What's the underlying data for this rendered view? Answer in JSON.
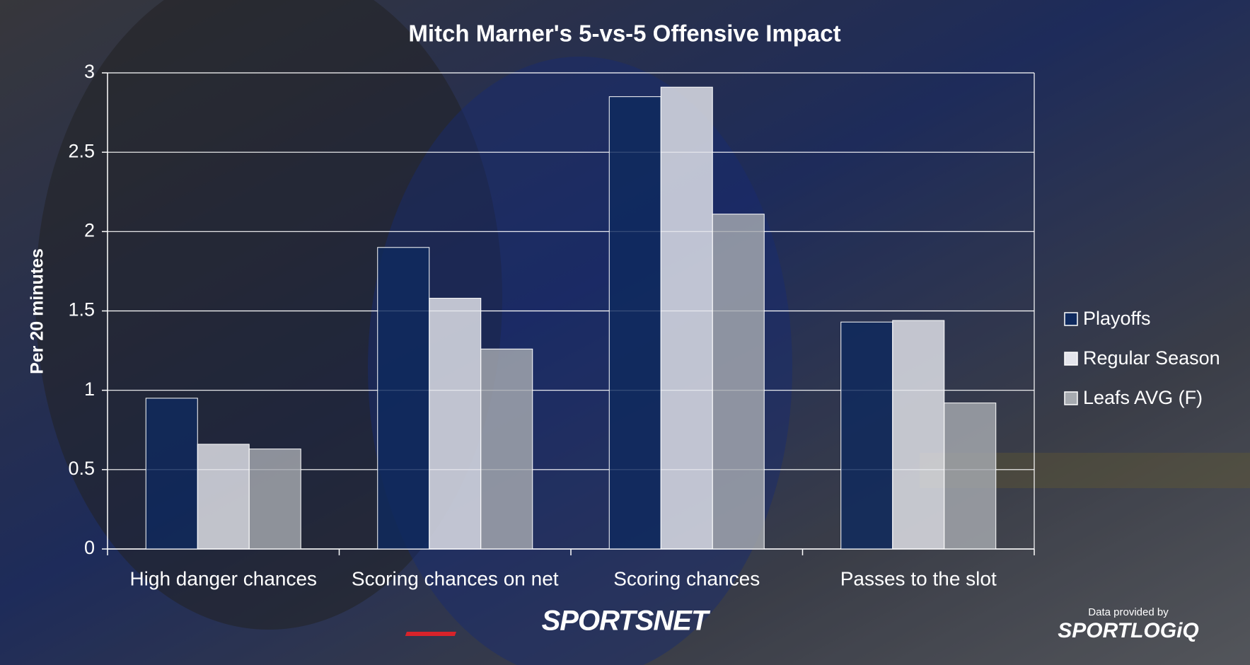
{
  "chart_data": {
    "type": "bar",
    "title": "Mitch Marner's 5-vs-5 Offensive Impact",
    "y_label": "Per 20 minutes",
    "categories": [
      "High danger chances",
      "Scoring chances on net",
      "Scoring chances",
      "Passes to the slot"
    ],
    "series": [
      {
        "name": "Playoffs",
        "color": "#0f2a5e",
        "values": [
          0.95,
          1.9,
          2.85,
          1.43
        ]
      },
      {
        "name": "Regular Season",
        "color": "#e4e5ec",
        "values": [
          0.66,
          1.58,
          2.91,
          1.44
        ]
      },
      {
        "name": "Leafs AVG (F)",
        "color": "#a6aab0",
        "values": [
          0.63,
          1.26,
          2.11,
          0.92
        ]
      }
    ],
    "ylim": [
      0,
      3
    ],
    "yticks": [
      0,
      0.5,
      1,
      1.5,
      2,
      2.5,
      3
    ],
    "grid": true,
    "legend": "right",
    "branding": {
      "logo": "SPORTSNET",
      "credit": "Data provided by",
      "provider": "SPORTLOGiQ"
    }
  }
}
